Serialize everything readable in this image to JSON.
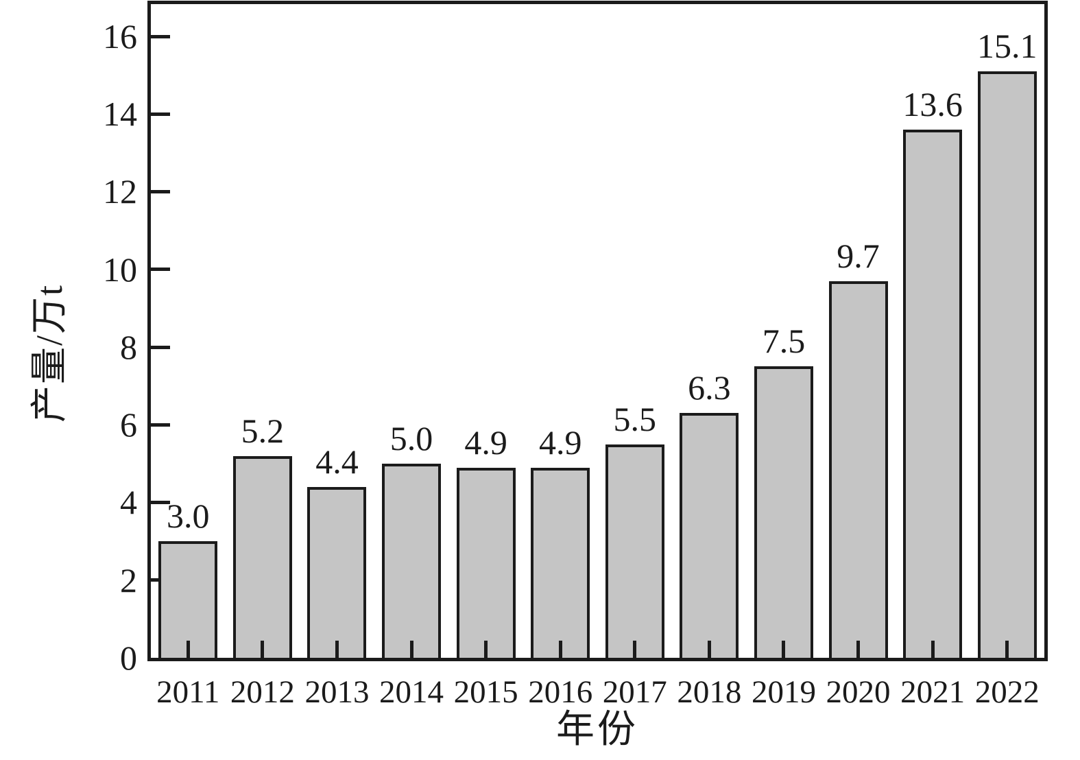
{
  "chart_data": {
    "type": "bar",
    "categories": [
      "2011",
      "2012",
      "2013",
      "2014",
      "2015",
      "2016",
      "2017",
      "2018",
      "2019",
      "2020",
      "2021",
      "2022"
    ],
    "values": [
      3.0,
      5.2,
      4.4,
      5.0,
      4.9,
      4.9,
      5.5,
      6.3,
      7.5,
      9.7,
      13.6,
      15.1
    ],
    "value_labels": [
      "3.0",
      "5.2",
      "4.4",
      "5.0",
      "4.9",
      "4.9",
      "5.5",
      "6.3",
      "7.5",
      "9.7",
      "13.6",
      "15.1"
    ],
    "title": "",
    "xlabel": "年份",
    "ylabel": "产量/万t",
    "ylim": [
      0,
      16.83
    ],
    "yticks": [
      0,
      2,
      4,
      6,
      8,
      10,
      12,
      14,
      16
    ],
    "grid": false,
    "legend": null,
    "colors": {
      "bar_fill": "#c5c5c5",
      "bar_border": "#1b1b1b",
      "axis": "#1b1b1b",
      "text": "#1b1b1b",
      "background": "#ffffff"
    }
  }
}
